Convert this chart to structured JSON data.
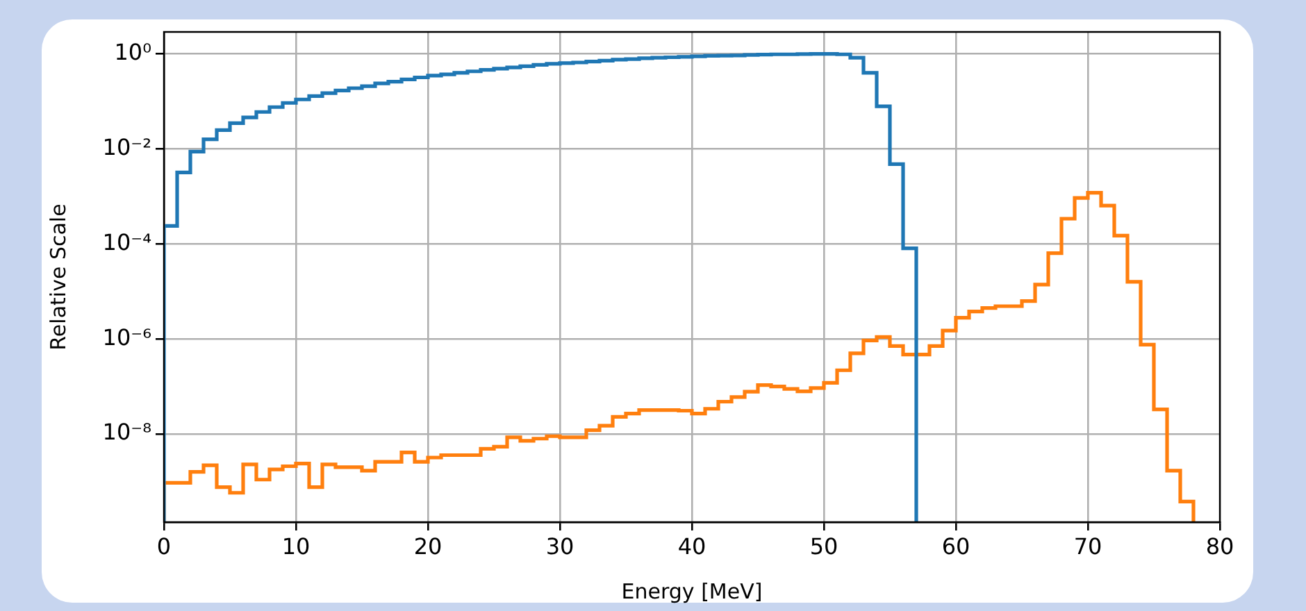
{
  "chart_data": {
    "type": "histogram",
    "xlabel": "Energy [MeV]",
    "ylabel": "Relative Scale",
    "log": "y",
    "grid": true,
    "bins": [
      0,
      1,
      2,
      3,
      4,
      5,
      6,
      7,
      8,
      9,
      10,
      11,
      12,
      13,
      14,
      15,
      16,
      17,
      18,
      19,
      20,
      21,
      22,
      23,
      24,
      25,
      26,
      27,
      28,
      29,
      30,
      31,
      32,
      33,
      34,
      35,
      36,
      37,
      38,
      39,
      40,
      41,
      42,
      43,
      44,
      45,
      46,
      47,
      48,
      49,
      50,
      51,
      52,
      53,
      54,
      55,
      56,
      57,
      58,
      59,
      60,
      61,
      62,
      63,
      64,
      65,
      66,
      67,
      68,
      69,
      70,
      71,
      72,
      73,
      74,
      75,
      76,
      77,
      78
    ],
    "xlim": [
      0,
      80
    ],
    "xticks": [
      0,
      10,
      20,
      30,
      40,
      50,
      60,
      70,
      80
    ],
    "ylim": [
      1.4e-10,
      2.9
    ],
    "yticks": [
      {
        "value": 1e-08,
        "label": "10⁻⁸"
      },
      {
        "value": 1e-06,
        "label": "10⁻⁶"
      },
      {
        "value": 0.0001,
        "label": "10⁻⁴"
      },
      {
        "value": 0.01,
        "label": "10⁻²"
      },
      {
        "value": 1,
        "label": "10⁰"
      }
    ],
    "series": [
      {
        "color": "#1f77b4",
        "bins": [
          0,
          1,
          2,
          3,
          4,
          5,
          6,
          7,
          8,
          9,
          10,
          11,
          12,
          13,
          14,
          15,
          16,
          17,
          18,
          19,
          20,
          21,
          22,
          23,
          24,
          25,
          26,
          27,
          28,
          29,
          30,
          31,
          32,
          33,
          34,
          35,
          36,
          37,
          38,
          39,
          40,
          41,
          42,
          43,
          44,
          45,
          46,
          47,
          48,
          49,
          50,
          51,
          52,
          53,
          54,
          55,
          56,
          57
        ],
        "values": [
          0.00024,
          0.0032,
          0.0088,
          0.016,
          0.025,
          0.035,
          0.046,
          0.06,
          0.076,
          0.093,
          0.11,
          0.13,
          0.15,
          0.17,
          0.19,
          0.21,
          0.24,
          0.26,
          0.29,
          0.32,
          0.35,
          0.37,
          0.4,
          0.43,
          0.46,
          0.49,
          0.52,
          0.55,
          0.59,
          0.62,
          0.64,
          0.66,
          0.69,
          0.72,
          0.76,
          0.78,
          0.81,
          0.83,
          0.85,
          0.87,
          0.89,
          0.91,
          0.92,
          0.93,
          0.95,
          0.97,
          0.98,
          0.98,
          0.99,
          1.0,
          1.0,
          0.98,
          0.83,
          0.4,
          0.079,
          0.0048,
          8.1e-05
        ]
      },
      {
        "color": "#ff7f0e",
        "values": [
          9.4e-10,
          9.4e-10,
          1.6e-09,
          2.2e-09,
          7.6e-10,
          5.8e-10,
          2.3e-09,
          1.1e-09,
          1.8e-09,
          2.1e-09,
          2.4e-09,
          7.6e-10,
          2.3e-09,
          2e-09,
          2e-09,
          1.7e-09,
          2.6e-09,
          2.6e-09,
          4.1e-09,
          2.6e-09,
          3.2e-09,
          3.6e-09,
          3.6e-09,
          3.6e-09,
          4.9e-09,
          5.4e-09,
          8.5e-09,
          7.2e-09,
          8e-09,
          9e-09,
          8.5e-09,
          8.5e-09,
          1.2e-08,
          1.5e-08,
          2.3e-08,
          2.7e-08,
          3.2e-08,
          3.2e-08,
          3.2e-08,
          3.1e-08,
          2.7e-08,
          3.4e-08,
          4.8e-08,
          6e-08,
          7.8e-08,
          1.07e-07,
          1e-07,
          8.9e-08,
          7.9e-08,
          9.3e-08,
          1.2e-07,
          2.2e-07,
          5e-07,
          9.3e-07,
          1.1e-06,
          7.1e-07,
          4.7e-07,
          4.7e-07,
          7.1e-07,
          1.5e-06,
          2.8e-06,
          3.8e-06,
          4.5e-06,
          4.9e-06,
          4.9e-06,
          6.3e-06,
          1.4e-05,
          6.4e-05,
          0.00034,
          0.00093,
          0.0012,
          0.00064,
          0.00015,
          1.6e-05,
          7.6e-07,
          3.3e-08,
          1.7e-09,
          3.8e-10
        ]
      }
    ]
  }
}
